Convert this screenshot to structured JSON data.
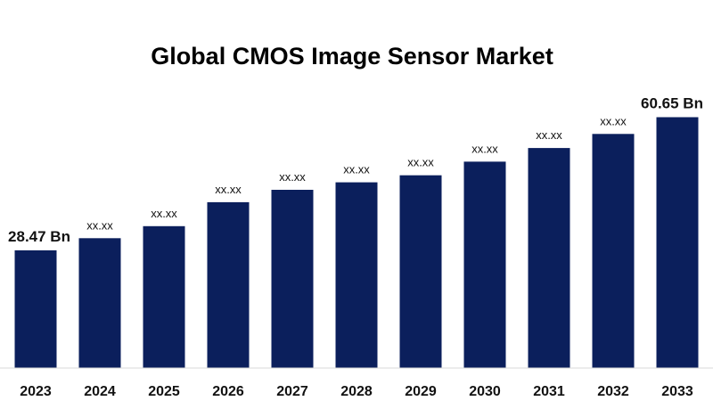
{
  "chart_data": {
    "type": "bar",
    "title": "Global CMOS Image Sensor Market",
    "xlabel": "",
    "ylabel": "",
    "categories": [
      "2023",
      "2024",
      "2025",
      "2026",
      "2027",
      "2028",
      "2029",
      "2030",
      "2031",
      "2032",
      "2033"
    ],
    "values": [
      28.47,
      31.4,
      34.3,
      40.1,
      43.1,
      44.9,
      46.6,
      49.9,
      53.2,
      56.6,
      60.65
    ],
    "data_labels": [
      "28.47 Bn",
      "xx.xx",
      "xx.xx",
      "xx.xx",
      "xx.xx",
      "xx.xx",
      "xx.xx",
      "xx.xx",
      "xx.xx",
      "xx.xx",
      "60.65 Bn"
    ],
    "ylim": [
      0,
      64
    ],
    "grid": false,
    "legend": "none",
    "bar_color": "#0b1f5c"
  }
}
